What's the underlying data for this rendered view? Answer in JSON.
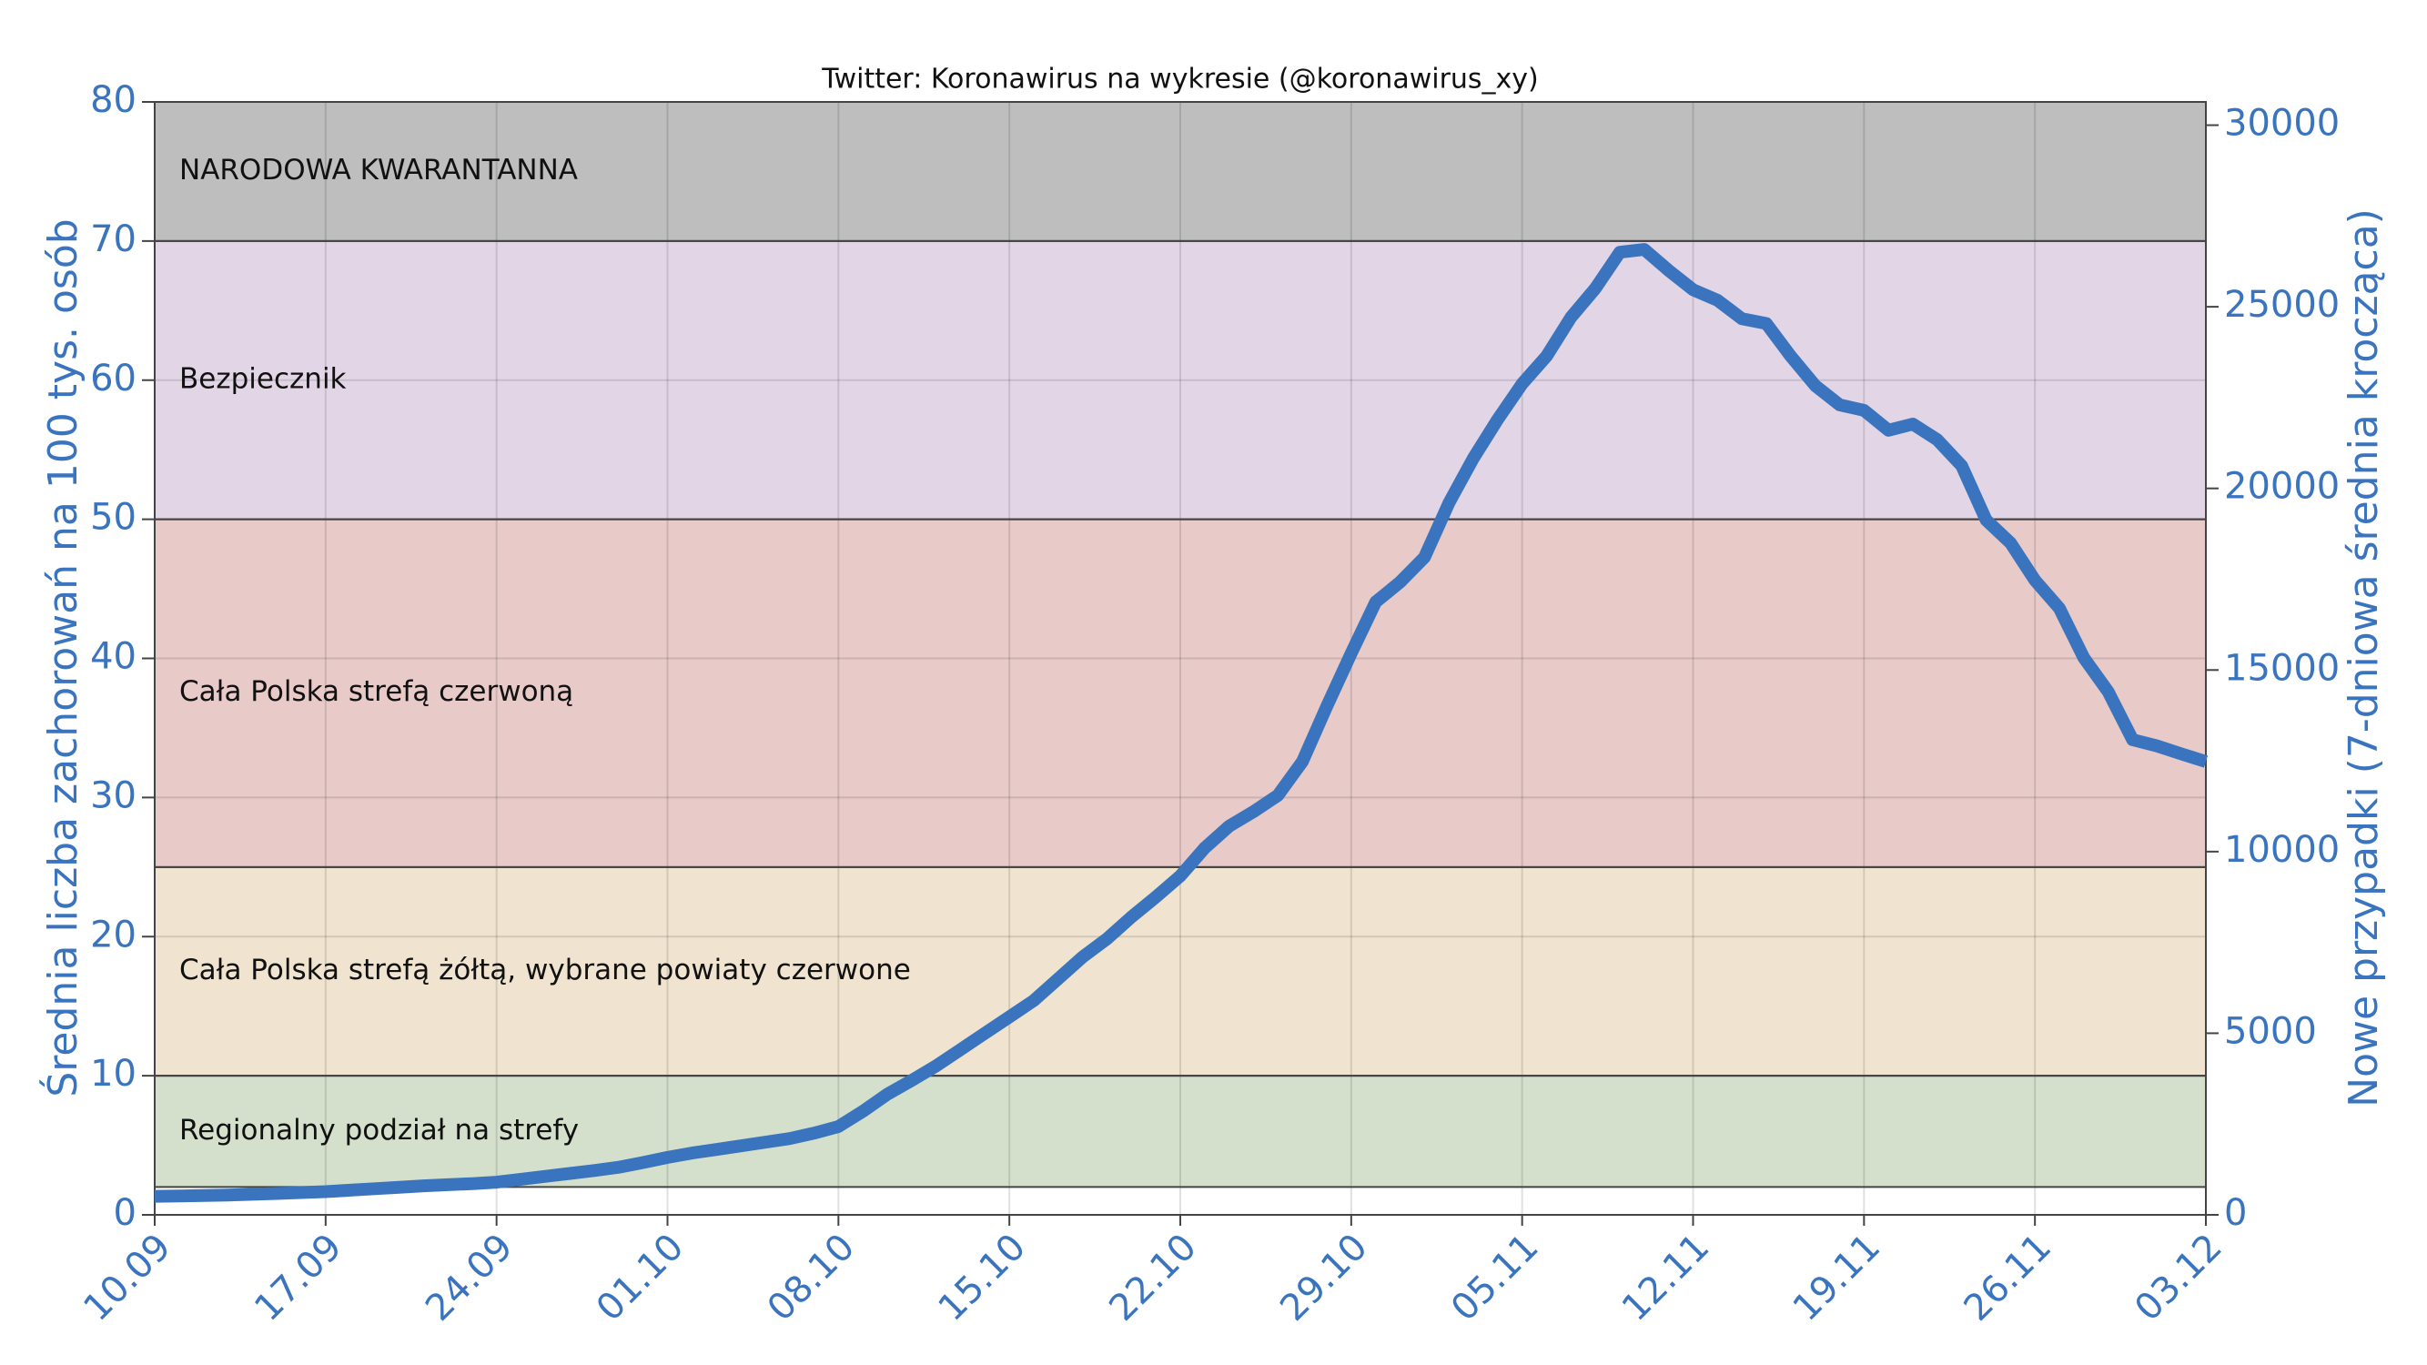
{
  "chart_data": {
    "type": "line",
    "title": "Twitter: Koronawirus na wykresie (@koronawirus_xy)",
    "y_label": "Średnia liczba zachorowań na 100 tys. osób",
    "y2_label": "Nowe przypadki (7-dniowa średnia krocząca)",
    "categories": [
      "10.09",
      null,
      null,
      null,
      null,
      null,
      null,
      "17.09",
      null,
      null,
      null,
      null,
      null,
      null,
      "24.09",
      null,
      null,
      null,
      null,
      null,
      null,
      "01.10",
      null,
      null,
      null,
      null,
      null,
      null,
      "08.10",
      null,
      null,
      null,
      null,
      null,
      null,
      "15.10",
      null,
      null,
      null,
      null,
      null,
      null,
      "22.10",
      null,
      null,
      null,
      null,
      null,
      null,
      "29.10",
      null,
      null,
      null,
      null,
      null,
      null,
      "05.11",
      null,
      null,
      null,
      null,
      null,
      null,
      "12.11",
      null,
      null,
      null,
      null,
      null,
      null,
      "19.11",
      null,
      null,
      null,
      null,
      null,
      null,
      "26.11",
      null,
      null,
      null,
      null,
      null,
      null,
      "03.12"
    ],
    "series": [
      {
        "name": "Nowe przypadki",
        "color": "#3a74be",
        "axis": "y2",
        "values": [
          510,
          520,
          530,
          545,
          565,
          590,
          615,
          640,
          680,
          720,
          760,
          800,
          830,
          860,
          900,
          980,
          1060,
          1140,
          1220,
          1310,
          1440,
          1580,
          1700,
          1800,
          1900,
          2000,
          2100,
          2250,
          2430,
          2850,
          3320,
          3700,
          4100,
          4550,
          5000,
          5450,
          5900,
          6500,
          7100,
          7600,
          8200,
          8750,
          9330,
          10100,
          10700,
          11100,
          11550,
          12480,
          14000,
          15460,
          16870,
          17420,
          18100,
          19600,
          20830,
          21900,
          22880,
          23640,
          24710,
          25510,
          26500,
          26580,
          26000,
          25470,
          25180,
          24670,
          24540,
          23640,
          22830,
          22300,
          22150,
          21600,
          21770,
          21340,
          20620,
          19130,
          18500,
          17470,
          16700,
          15340,
          14400,
          13080,
          12910,
          12690,
          12480
        ]
      }
    ],
    "bands": [
      {
        "label": "Regionalny podział na strefy",
        "from": 2,
        "to": 10,
        "color": "#d5e0cc"
      },
      {
        "label": "Cała Polska strefą żółtą, wybrane powiaty czerwone",
        "from": 10,
        "to": 25,
        "color": "#f0e4d0"
      },
      {
        "label": "Cała Polska strefą czerwoną",
        "from": 25,
        "to": 50,
        "color": "#e8cac8"
      },
      {
        "label": "Bezpiecznik",
        "from": 50,
        "to": 70,
        "color": "#e2d6e6"
      },
      {
        "label": "NARODOWA KWARANTANNA",
        "from": 70,
        "to": 80,
        "color": "#bebebe"
      }
    ],
    "ylim": [
      0,
      80
    ],
    "yticks": [
      0,
      10,
      20,
      30,
      40,
      50,
      60,
      70,
      80
    ],
    "y2lim": [
      0,
      30640
    ],
    "y2ticks": [
      0,
      5000,
      10000,
      15000,
      20000,
      25000,
      30000
    ],
    "grid": true
  }
}
